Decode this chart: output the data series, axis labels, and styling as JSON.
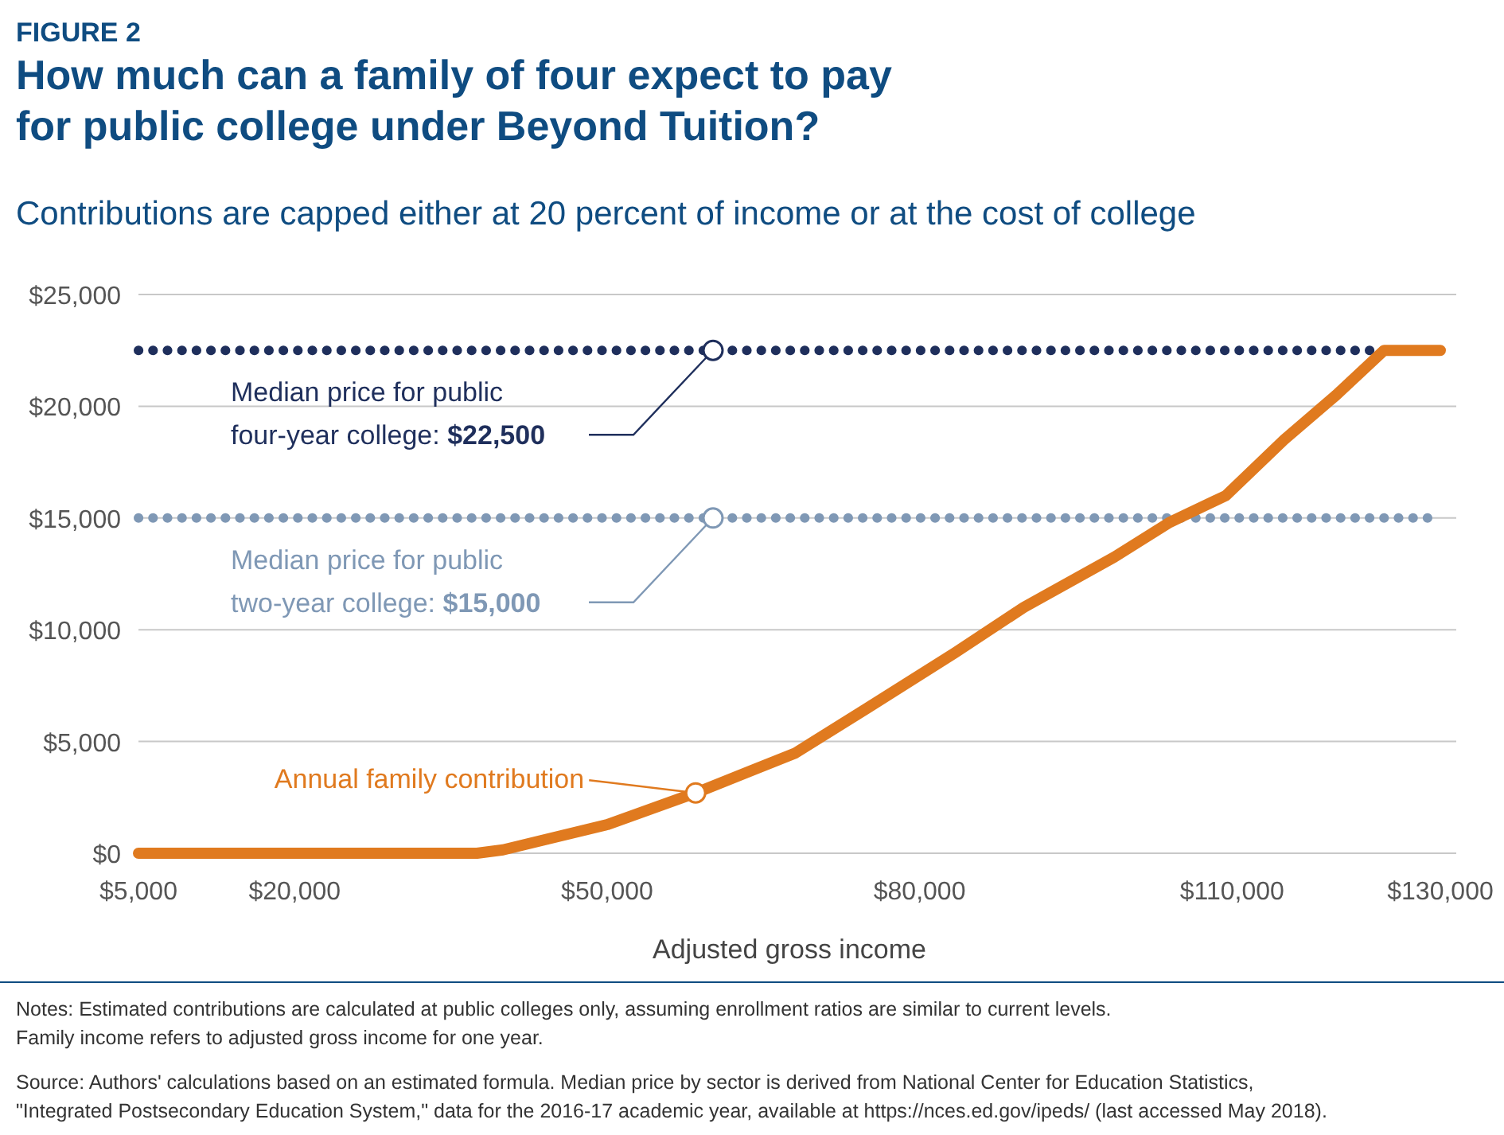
{
  "chart_data": {
    "type": "line",
    "title": "How much can a family of four expect to pay\nfor public college under Beyond Tuition?",
    "subtitle": "Contributions are capped either at 20 percent of income or at the cost of college",
    "xlabel": "Adjusted gross income",
    "xlim": [
      5000,
      130000
    ],
    "xticks": [
      {
        "value": 5000,
        "label": "$5,000"
      },
      {
        "value": 20000,
        "label": "$20,000"
      },
      {
        "value": 50000,
        "label": "$50,000"
      },
      {
        "value": 80000,
        "label": "$80,000"
      },
      {
        "value": 110000,
        "label": "$110,000"
      },
      {
        "value": 130000,
        "label": "$130,000"
      }
    ],
    "ylim": [
      0,
      25000
    ],
    "yticks": [
      {
        "value": 0,
        "label": "$0"
      },
      {
        "value": 5000,
        "label": "$5,000"
      },
      {
        "value": 10000,
        "label": "$10,000"
      },
      {
        "value": 15000,
        "label": "$15,000"
      },
      {
        "value": 20000,
        "label": "$20,000"
      },
      {
        "value": 25000,
        "label": "$25,000"
      }
    ],
    "grid": "y",
    "marker": "none",
    "line_style": "solid",
    "series": [
      {
        "color": "#e07a1f",
        "x": [
          5000,
          20000,
          37500,
          40000,
          43700,
          50000,
          58500,
          63500,
          68100,
          75000,
          83400,
          90000,
          98700,
          104000,
          109400,
          115000,
          120000,
          124600,
          130000
        ],
        "values": [
          0,
          0,
          0,
          150,
          570,
          1280,
          2700,
          3630,
          4490,
          6500,
          8970,
          11000,
          13250,
          14800,
          16000,
          18500,
          20500,
          22500,
          22500
        ]
      }
    ],
    "ref_lines": [
      {
        "axis": "y",
        "value": 22500,
        "label": "Median price for public four-year college: $22,500",
        "color": "#1f2f5c",
        "line_style": "dotted"
      },
      {
        "axis": "y",
        "value": 15000,
        "label": "Median price for public two-year college: $15,000",
        "color": "#7f98b5",
        "line_style": "dotted"
      }
    ],
    "annotations": [
      "FIGURE 2",
      {
        "text": "Annual family contribution",
        "x": 58500,
        "y": 2700
      },
      "Notes: Estimated contributions are calculated at public colleges only, assuming enrollment ratios are similar to current levels.",
      "Family income refers to adjusted gross income for one year.",
      "Source: Authors' calculations based on an estimated formula. Median price by sector is derived from National Center for Education Statistics,",
      "\"Integrated Postsecondary Education System,\" data for the 2016-17 academic year, available at https://nces.ed.gov/ipeds/ (last accessed May 2018)."
    ]
  }
}
